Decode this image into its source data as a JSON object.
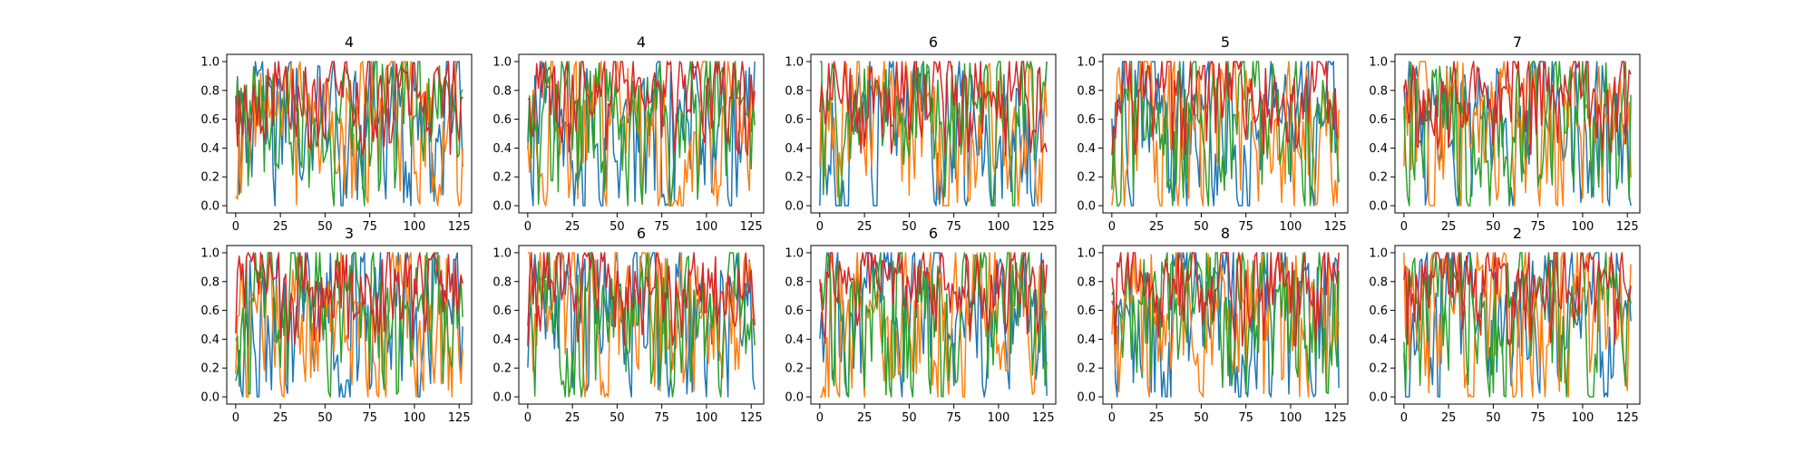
{
  "chart_data": {
    "type": "line",
    "layout": {
      "rows": 2,
      "cols": 5
    },
    "xlim": [
      -5,
      132
    ],
    "ylim": [
      -0.05,
      1.05
    ],
    "xticks": [
      0,
      25,
      50,
      75,
      100,
      125
    ],
    "yticks": [
      0.0,
      0.2,
      0.4,
      0.6,
      0.8,
      1.0
    ],
    "xtick_labels": [
      "0",
      "25",
      "50",
      "75",
      "100",
      "125"
    ],
    "ytick_labels": [
      "0.0",
      "0.2",
      "0.4",
      "0.6",
      "0.8",
      "1.0"
    ],
    "grid": false,
    "series_colors": [
      "#1f77b4",
      "#ff7f0e",
      "#2ca02c",
      "#d62728"
    ],
    "panels": [
      {
        "title": "4",
        "seed": 11
      },
      {
        "title": "4",
        "seed": 23
      },
      {
        "title": "6",
        "seed": 37
      },
      {
        "title": "5",
        "seed": 41
      },
      {
        "title": "7",
        "seed": 53
      },
      {
        "title": "3",
        "seed": 67
      },
      {
        "title": "6",
        "seed": 71
      },
      {
        "title": "6",
        "seed": 83
      },
      {
        "title": "8",
        "seed": 97
      },
      {
        "title": "2",
        "seed": 101
      }
    ]
  }
}
